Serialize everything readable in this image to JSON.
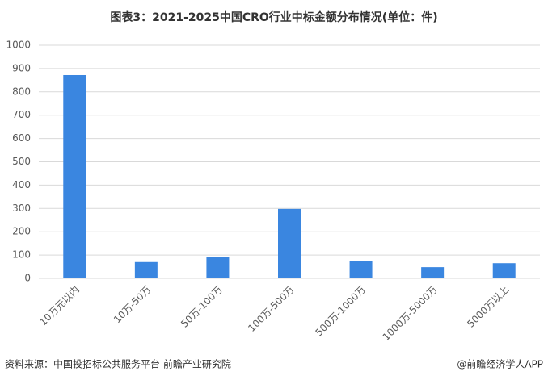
{
  "chart_data": {
    "type": "bar",
    "title": "图表3：2021-2025中国CRO行业中标金额分布情况(单位：件)",
    "categories": [
      "10万元以内",
      "10万-50万",
      "50万-100万",
      "100万-500万",
      "500万-1000万",
      "1000万-5000万",
      "5000万以上"
    ],
    "values": [
      872,
      70,
      90,
      298,
      75,
      48,
      65
    ],
    "color": "#3a86e0",
    "ylim": [
      0,
      1000
    ],
    "yticks": [
      0,
      100,
      200,
      300,
      400,
      500,
      600,
      700,
      800,
      900,
      1000
    ],
    "grid": true,
    "source": "资料来源：中国投招标公共服务平台 前瞻产业研究院",
    "credit": "@前瞻经济学人APP"
  }
}
